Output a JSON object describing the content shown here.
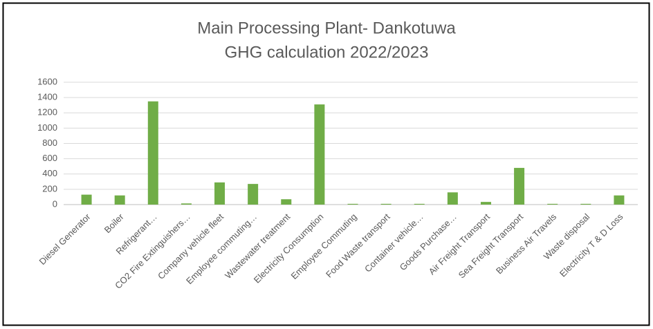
{
  "chart_data": {
    "type": "bar",
    "title": [
      "Main Processing Plant- Dankotuwa",
      "GHG calculation 2022/2023"
    ],
    "categories": [
      "Diesel Generator",
      "Boiler",
      "Refrigerant…",
      "CO2 Fire Extinguishers…",
      "Company vehicle fleet",
      "Employee commuting…",
      "Wastewater treatment",
      "Electricity Consumption",
      "Employee Commuting",
      "Food Waste transport",
      "Container vehicle…",
      "Goods Purchase…",
      "Air Freight Transport",
      "Sea Freight Transport",
      "Business Air Travels",
      "Waste disposal",
      "Electricity T & D Loss"
    ],
    "values": [
      130,
      120,
      1350,
      15,
      290,
      270,
      70,
      1310,
      10,
      10,
      10,
      160,
      35,
      480,
      10,
      10,
      120
    ],
    "color": "#70ad47",
    "ylim": [
      0,
      1600
    ],
    "yticks": [
      0,
      200,
      400,
      600,
      800,
      1000,
      1200,
      1400,
      1600
    ],
    "grid": true
  }
}
